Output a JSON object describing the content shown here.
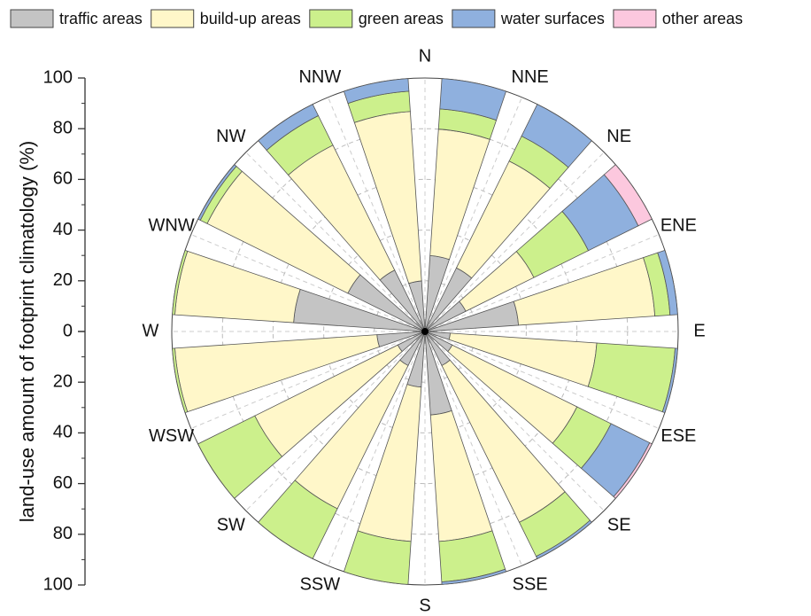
{
  "chart_data": {
    "type": "rose",
    "y_label": "land-use amount of footprint climatology (%)",
    "directions": [
      "N",
      "NNE",
      "NE",
      "ENE",
      "E",
      "ESE",
      "SE",
      "SSE",
      "S",
      "SSW",
      "SW",
      "WSW",
      "W",
      "WNW",
      "NW",
      "NNW"
    ],
    "ylim": [
      0,
      100
    ],
    "yticks": [
      0,
      20,
      40,
      60,
      80,
      100
    ],
    "grid": true,
    "legend": "top",
    "series": [
      {
        "name": "traffic areas",
        "color": "#c4c4c4",
        "values": [
          30,
          28,
          18,
          37,
          10,
          12,
          15,
          33,
          22,
          15,
          12,
          19,
          52,
          34,
          27,
          20
        ]
      },
      {
        "name": "build-up areas",
        "color": "#fff7c9",
        "values": [
          50,
          47,
          30,
          54,
          58,
          55,
          69,
          50,
          61,
          63,
          63,
          80,
          47,
          62,
          55,
          67
        ]
      },
      {
        "name": "green areas",
        "color": "#ccf08c",
        "values": [
          8,
          11,
          24,
          6,
          31,
          15,
          15,
          16,
          17,
          22,
          25,
          1,
          1,
          3,
          13,
          8
        ]
      },
      {
        "name": "water surfaces",
        "color": "#8fb0de",
        "values": [
          12,
          14,
          22,
          3,
          1,
          17,
          1,
          1,
          0,
          0,
          0,
          0,
          0,
          1,
          5,
          5
        ]
      },
      {
        "name": "other areas",
        "color": "#fcc8de",
        "values": [
          0,
          0,
          6,
          0,
          0,
          1,
          0,
          0,
          0,
          0,
          0,
          0,
          0,
          0,
          0,
          0
        ]
      }
    ]
  }
}
